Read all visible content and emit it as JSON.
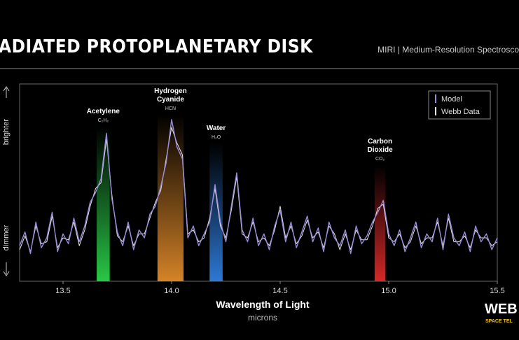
{
  "header": {
    "title": "ADIATED PROTOPLANETARY DISK",
    "subtitle": "MIRI | Medium-Resolution Spectrosco"
  },
  "chart_data": {
    "type": "line",
    "x": [
      13.3,
      13.325,
      13.35,
      13.375,
      13.4,
      13.425,
      13.45,
      13.475,
      13.5,
      13.525,
      13.55,
      13.575,
      13.6,
      13.625,
      13.65,
      13.675,
      13.7,
      13.725,
      13.75,
      13.775,
      13.8,
      13.825,
      13.85,
      13.875,
      13.9,
      13.925,
      13.95,
      13.975,
      14.0,
      14.025,
      14.05,
      14.075,
      14.1,
      14.125,
      14.15,
      14.175,
      14.2,
      14.225,
      14.25,
      14.275,
      14.3,
      14.325,
      14.35,
      14.375,
      14.4,
      14.425,
      14.45,
      14.475,
      14.5,
      14.525,
      14.55,
      14.575,
      14.6,
      14.625,
      14.65,
      14.675,
      14.7,
      14.725,
      14.75,
      14.775,
      14.8,
      14.825,
      14.85,
      14.875,
      14.9,
      14.925,
      14.95,
      14.975,
      15.0,
      15.025,
      15.05,
      15.075,
      15.1,
      15.125,
      15.15,
      15.175,
      15.2,
      15.225,
      15.25,
      15.275,
      15.3,
      15.325,
      15.35,
      15.375,
      15.4,
      15.425,
      15.45,
      15.475,
      15.5
    ],
    "series": [
      {
        "name": "Model",
        "color": "#9a8ad8",
        "values": [
          18,
          25,
          14,
          30,
          17,
          22,
          35,
          15,
          24,
          19,
          32,
          20,
          28,
          40,
          45,
          52,
          75,
          42,
          25,
          18,
          30,
          16,
          26,
          22,
          34,
          38,
          48,
          60,
          82,
          68,
          62,
          22,
          28,
          18,
          24,
          30,
          49,
          30,
          20,
          38,
          55,
          26,
          20,
          32,
          18,
          24,
          16,
          28,
          36,
          20,
          30,
          17,
          25,
          33,
          20,
          27,
          15,
          30,
          22,
          18,
          26,
          14,
          28,
          19,
          23,
          30,
          35,
          41,
          24,
          18,
          26,
          15,
          22,
          30,
          17,
          24,
          20,
          32,
          16,
          34,
          22,
          18,
          25,
          15,
          28,
          20,
          24,
          16,
          22
        ]
      },
      {
        "name": "Webb Data",
        "color": "#e6e6e6",
        "values": [
          16,
          23,
          15,
          28,
          19,
          20,
          33,
          17,
          22,
          21,
          30,
          18,
          26,
          38,
          47,
          50,
          72,
          44,
          23,
          20,
          28,
          18,
          24,
          24,
          32,
          40,
          46,
          62,
          78,
          70,
          64,
          24,
          26,
          20,
          22,
          32,
          47,
          28,
          22,
          36,
          53,
          24,
          22,
          30,
          20,
          22,
          18,
          26,
          38,
          22,
          28,
          19,
          23,
          31,
          22,
          25,
          17,
          28,
          24,
          16,
          24,
          16,
          26,
          21,
          21,
          28,
          37,
          39,
          22,
          20,
          24,
          17,
          20,
          28,
          19,
          22,
          22,
          30,
          18,
          32,
          20,
          20,
          23,
          17,
          26,
          22,
          22,
          18,
          20
        ]
      }
    ],
    "xlim": [
      13.3,
      15.5
    ],
    "xticks": [
      13.5,
      {
        "value": 14,
        "label": "14.0"
      },
      14.5,
      {
        "value": 15,
        "label": "15.0"
      },
      15.5
    ],
    "ylim": [
      0,
      100
    ],
    "xlabel": "Wavelength of Light",
    "xunit": "microns",
    "ylabel_top": "brighter",
    "ylabel_bottom": "dimmer",
    "legend": "top-right",
    "bands": [
      {
        "label": [
          "Acetylene"
        ],
        "formula": "C₂H₂",
        "range": [
          13.655,
          13.715
        ],
        "color": "#2bd14a"
      },
      {
        "label": [
          "Hydrogen",
          "Cyanide"
        ],
        "formula": "HCN",
        "range": [
          13.935,
          14.055
        ],
        "color": "#e08a2a"
      },
      {
        "label": [
          "Water"
        ],
        "formula": "H₂O",
        "range": [
          14.175,
          14.235
        ],
        "color": "#2f7fe0"
      },
      {
        "label": [
          "Carbon",
          "Dioxide"
        ],
        "formula": "CO₂",
        "range": [
          14.935,
          14.985
        ],
        "color": "#e02a2a"
      }
    ]
  },
  "logo": {
    "text": "WEB",
    "subtext": "SPACE TEL"
  }
}
